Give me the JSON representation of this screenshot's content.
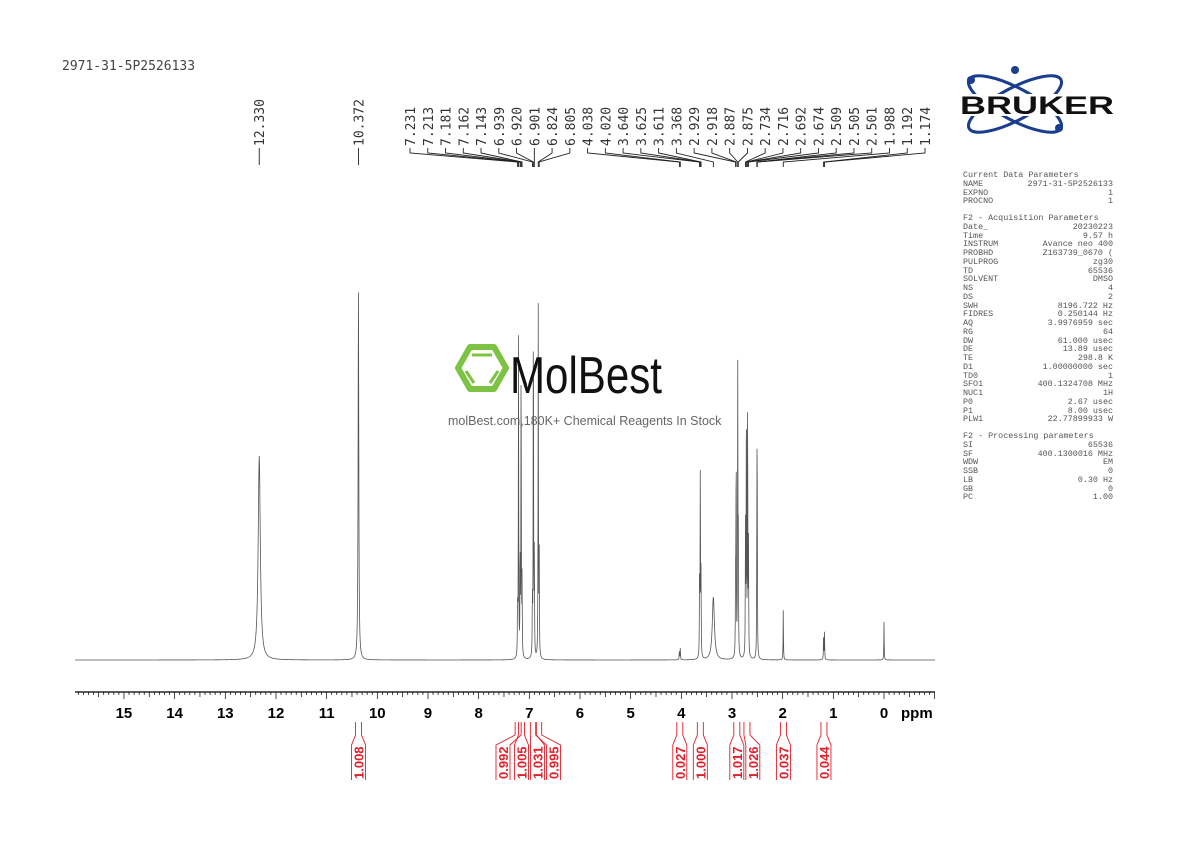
{
  "title": "2971-31-5P2526133",
  "watermark": {
    "brand": "MolBest",
    "tagline": "molBest.com,180K+ Chemical Reagents In Stock",
    "color": "#7dc242"
  },
  "logo": {
    "text": "BRUKER",
    "color": "#1a3d8f"
  },
  "parameters": {
    "current": {
      "header": "Current Data Parameters",
      "rows": [
        [
          "NAME",
          "2971-31-5P2526133"
        ],
        [
          "EXPNO",
          "1"
        ],
        [
          "PROCNO",
          "1"
        ]
      ]
    },
    "acquisition": {
      "header": "F2 - Acquisition Parameters",
      "rows": [
        [
          "Date_",
          "20230223"
        ],
        [
          "Time",
          "9.57 h"
        ],
        [
          "INSTRUM",
          "Avance neo 400"
        ],
        [
          "PROBHD",
          "Z163739_0670 ("
        ],
        [
          "PULPROG",
          "zg30"
        ],
        [
          "TD",
          "65536"
        ],
        [
          "SOLVENT",
          "DMSO"
        ],
        [
          "NS",
          "4"
        ],
        [
          "DS",
          "2"
        ],
        [
          "SWH",
          "8196.722 Hz"
        ],
        [
          "FIDRES",
          "0.250144 Hz"
        ],
        [
          "AQ",
          "3.9976959 sec"
        ],
        [
          "RG",
          "64"
        ],
        [
          "DW",
          "61.000 usec"
        ],
        [
          "DE",
          "13.89 usec"
        ],
        [
          "TE",
          "298.8 K"
        ],
        [
          "D1",
          "1.00000000 sec"
        ],
        [
          "TD0",
          "1"
        ],
        [
          "SFO1",
          "400.1324708 MHz"
        ],
        [
          "NUC1",
          "1H"
        ],
        [
          "P0",
          "2.67 usec"
        ],
        [
          "P1",
          "8.00 usec"
        ],
        [
          "PLW1",
          "22.77899933 W"
        ]
      ]
    },
    "processing": {
      "header": "F2 - Processing parameters",
      "rows": [
        [
          "SI",
          "65536"
        ],
        [
          "SF",
          "400.1300016 MHz"
        ],
        [
          "WDW",
          "EM"
        ],
        [
          "SSB",
          "0"
        ],
        [
          "LB",
          "0.30 Hz"
        ],
        [
          "GB",
          "0"
        ],
        [
          "PC",
          "1.00"
        ]
      ]
    }
  },
  "chart_data": {
    "type": "line",
    "subtype": "1H NMR spectrum",
    "xlabel": "ppm",
    "xlim": [
      16,
      -1
    ],
    "x_reversed": true,
    "x_ticks": [
      15,
      14,
      13,
      12,
      11,
      10,
      9,
      8,
      7,
      6,
      5,
      4,
      3,
      2,
      1,
      0
    ],
    "grid": false,
    "line_color": "#555555",
    "integral_color": "#e0202a",
    "peaks": [
      {
        "ppm": 12.33,
        "label": "12.330",
        "intensity": 204,
        "width": 0.025
      },
      {
        "ppm": 10.372,
        "label": "10.372",
        "intensity": 373,
        "width": 0.008
      },
      {
        "ppm": 7.231,
        "label": "7.231",
        "intensity": 60
      },
      {
        "ppm": 7.213,
        "label": "7.213",
        "intensity": 320
      },
      {
        "ppm": 7.181,
        "label": "7.181",
        "intensity": 110
      },
      {
        "ppm": 7.162,
        "label": "7.162",
        "intensity": 330
      },
      {
        "ppm": 7.143,
        "label": "7.143",
        "intensity": 80
      },
      {
        "ppm": 6.939,
        "label": "6.939",
        "intensity": 60
      },
      {
        "ppm": 6.92,
        "label": "6.920",
        "intensity": 395
      },
      {
        "ppm": 6.901,
        "label": "6.901",
        "intensity": 110
      },
      {
        "ppm": 6.824,
        "label": "6.824",
        "intensity": 355
      },
      {
        "ppm": 6.805,
        "label": "6.805",
        "intensity": 110
      },
      {
        "ppm": 4.038,
        "label": "4.038",
        "intensity": 10
      },
      {
        "ppm": 4.02,
        "label": "4.020",
        "intensity": 12
      },
      {
        "ppm": 3.64,
        "label": "3.640",
        "intensity": 80
      },
      {
        "ppm": 3.625,
        "label": "3.625",
        "intensity": 200
      },
      {
        "ppm": 3.611,
        "label": "3.611",
        "intensity": 80
      },
      {
        "ppm": 3.368,
        "label": "3.368",
        "intensity": 63,
        "width": 0.025
      },
      {
        "ppm": 2.929,
        "label": "2.929",
        "intensity": 90
      },
      {
        "ppm": 2.918,
        "label": "2.918",
        "intensity": 220
      },
      {
        "ppm": 2.887,
        "label": "2.887",
        "intensity": 290
      },
      {
        "ppm": 2.875,
        "label": "2.875",
        "intensity": 120
      },
      {
        "ppm": 2.734,
        "label": "2.734",
        "intensity": 130
      },
      {
        "ppm": 2.716,
        "label": "2.716",
        "intensity": 290
      },
      {
        "ppm": 2.692,
        "label": "2.692",
        "intensity": 285
      },
      {
        "ppm": 2.674,
        "label": "2.674",
        "intensity": 110
      },
      {
        "ppm": 2.509,
        "label": "2.509",
        "intensity": 90
      },
      {
        "ppm": 2.505,
        "label": "2.505",
        "intensity": 130
      },
      {
        "ppm": 2.501,
        "label": "2.501",
        "intensity": 90
      },
      {
        "ppm": 1.988,
        "label": "1.988",
        "intensity": 50
      },
      {
        "ppm": 1.192,
        "label": "1.192",
        "intensity": 27
      },
      {
        "ppm": 1.174,
        "label": "1.174",
        "intensity": 27
      },
      {
        "ppm": 0.0,
        "label": "",
        "intensity": 38
      }
    ],
    "integrals": [
      {
        "from": 10.42,
        "to": 10.32,
        "value": "1.008"
      },
      {
        "from": 7.25,
        "to": 7.19,
        "value": "0.992"
      },
      {
        "from": 7.19,
        "to": 7.12,
        "value": "1.005"
      },
      {
        "from": 6.96,
        "to": 6.88,
        "value": "1.031"
      },
      {
        "from": 6.85,
        "to": 6.78,
        "value": "0.995"
      },
      {
        "from": 4.07,
        "to": 3.99,
        "value": "0.027"
      },
      {
        "from": 3.68,
        "to": 3.57,
        "value": "1.000"
      },
      {
        "from": 2.96,
        "to": 2.85,
        "value": "1.017"
      },
      {
        "from": 2.76,
        "to": 2.65,
        "value": "1.026"
      },
      {
        "from": 2.02,
        "to": 1.95,
        "value": "0.037"
      },
      {
        "from": 1.22,
        "to": 1.15,
        "value": "0.044"
      }
    ]
  }
}
